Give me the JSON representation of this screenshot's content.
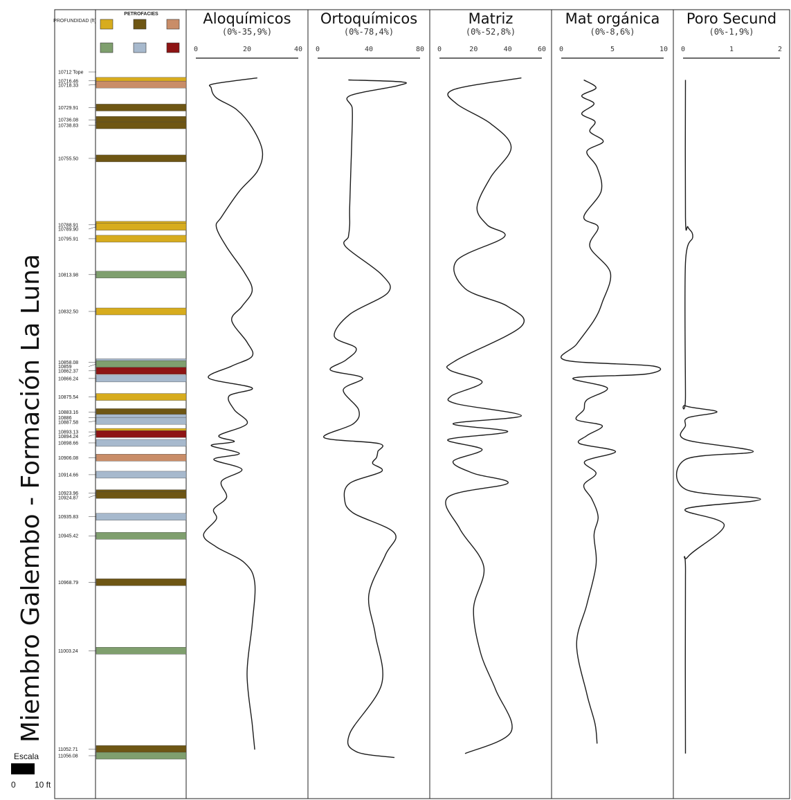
{
  "side_title": "Miembro Galembo - Formación La Luna",
  "depth_header": "PROFUNDIDAD (ft)",
  "lith_header": "PETROFACIES",
  "scale": {
    "label": "Escala",
    "min": "0",
    "max": "10 ft"
  },
  "colors": {
    "ocre": "#d7ac1e",
    "marron": "#6e5614",
    "rosa": "#c98d68",
    "verde": "#7f9f6e",
    "azul": "#a7b9cd",
    "rojo": "#8e1414"
  },
  "legend": [
    {
      "color": "ocre",
      "label": ""
    },
    {
      "color": "marron",
      "label": ""
    },
    {
      "color": "rosa",
      "label": ""
    },
    {
      "color": "verde",
      "label": ""
    },
    {
      "color": "azul",
      "label": ""
    },
    {
      "color": "rojo",
      "label": ""
    }
  ],
  "depths": [
    {
      "label": "10712 Tope",
      "value": 10712,
      "color": ""
    },
    {
      "label": "10716.46",
      "value": 10716.46,
      "color": "ocre"
    },
    {
      "label": "10718.33",
      "value": 10718.33,
      "color": "rosa"
    },
    {
      "label": "10729.91",
      "value": 10729.91,
      "color": "marron"
    },
    {
      "label": "10736.08",
      "value": 10736.08,
      "color": "marron"
    },
    {
      "label": "10738.83",
      "value": 10738.83,
      "color": "marron"
    },
    {
      "label": "10755.50",
      "value": 10755.5,
      "color": "marron"
    },
    {
      "label": "10788.91",
      "value": 10788.91,
      "color": "ocre"
    },
    {
      "label": "10789.90",
      "value": 10789.9,
      "color": "ocre"
    },
    {
      "label": "10795.91",
      "value": 10795.91,
      "color": "ocre"
    },
    {
      "label": "10813.98",
      "value": 10813.98,
      "color": "verde"
    },
    {
      "label": "10832.50",
      "value": 10832.5,
      "color": "ocre"
    },
    {
      "label": "10858.08",
      "value": 10858.08,
      "color": "azul"
    },
    {
      "label": "10859",
      "value": 10859,
      "color": "verde"
    },
    {
      "label": "10862.37",
      "value": 10862.37,
      "color": "rojo"
    },
    {
      "label": "10866.24",
      "value": 10866.24,
      "color": "azul"
    },
    {
      "label": "10875.54",
      "value": 10875.54,
      "color": "ocre"
    },
    {
      "label": "10883.16",
      "value": 10883.16,
      "color": "marron"
    },
    {
      "label": "10886",
      "value": 10886,
      "color": "azul"
    },
    {
      "label": "10887.58",
      "value": 10887.58,
      "color": "azul"
    },
    {
      "label": "10893.13",
      "value": 10893.13,
      "color": "ocre"
    },
    {
      "label": "10894.24",
      "value": 10894.24,
      "color": "rojo"
    },
    {
      "label": "10898.66",
      "value": 10898.66,
      "color": "azul"
    },
    {
      "label": "10906.08",
      "value": 10906.08,
      "color": "rosa"
    },
    {
      "label": "10914.66",
      "value": 10914.66,
      "color": "azul"
    },
    {
      "label": "10923.96",
      "value": 10923.96,
      "color": "marron"
    },
    {
      "label": "10924.87",
      "value": 10924.87,
      "color": "marron"
    },
    {
      "label": "10935.83",
      "value": 10935.83,
      "color": "azul"
    },
    {
      "label": "10945.42",
      "value": 10945.42,
      "color": "verde"
    },
    {
      "label": "10968.79",
      "value": 10968.79,
      "color": "marron"
    },
    {
      "label": "11003.24",
      "value": 11003.24,
      "color": "verde"
    },
    {
      "label": "11052.71",
      "value": 11052.71,
      "color": "marron"
    },
    {
      "label": "11056.08",
      "value": 11056.08,
      "color": "verde"
    }
  ],
  "chart_data": [
    {
      "type": "line",
      "title": "Aloquímicos",
      "subtitle": "(0%-35,9%)",
      "xlim": [
        0,
        40
      ],
      "ticks": [
        "0",
        "20",
        "40"
      ],
      "points": [
        [
          24,
          10715
        ],
        [
          7,
          10718
        ],
        [
          6,
          10720
        ],
        [
          8,
          10725
        ],
        [
          16,
          10731
        ],
        [
          22,
          10740
        ],
        [
          26,
          10752
        ],
        [
          24,
          10762
        ],
        [
          17,
          10772
        ],
        [
          10,
          10785
        ],
        [
          8,
          10790
        ],
        [
          12,
          10800
        ],
        [
          19,
          10813
        ],
        [
          22,
          10822
        ],
        [
          18,
          10830
        ],
        [
          14,
          10837
        ],
        [
          20,
          10848
        ],
        [
          22,
          10855
        ],
        [
          14,
          10860
        ],
        [
          5,
          10866
        ],
        [
          22,
          10871
        ],
        [
          13,
          10875
        ],
        [
          15,
          10882
        ],
        [
          20,
          10889
        ],
        [
          9,
          10895
        ],
        [
          15,
          10898
        ],
        [
          6,
          10900
        ],
        [
          17,
          10904
        ],
        [
          7,
          10907
        ],
        [
          18,
          10912
        ],
        [
          10,
          10918
        ],
        [
          12,
          10926
        ],
        [
          7,
          10932
        ],
        [
          8,
          10937
        ],
        [
          3,
          10945
        ],
        [
          8,
          10951
        ],
        [
          19,
          10959
        ],
        [
          23,
          10969
        ],
        [
          22,
          10990
        ],
        [
          20,
          11015
        ],
        [
          22,
          11040
        ],
        [
          23,
          11053
        ]
      ]
    },
    {
      "type": "line",
      "title": "Ortoquímicos",
      "subtitle": "(0%-78,4%)",
      "xlim": [
        0,
        80
      ],
      "ticks": [
        "0",
        "40",
        "80"
      ],
      "points": [
        [
          24,
          10716
        ],
        [
          66,
          10717
        ],
        [
          62,
          10719
        ],
        [
          25,
          10724
        ],
        [
          27,
          10730
        ],
        [
          27,
          10740
        ],
        [
          26,
          10760
        ],
        [
          25,
          10780
        ],
        [
          25,
          10789
        ],
        [
          24,
          10795
        ],
        [
          22,
          10800
        ],
        [
          50,
          10814
        ],
        [
          55,
          10823
        ],
        [
          25,
          10834
        ],
        [
          13,
          10845
        ],
        [
          30,
          10851
        ],
        [
          22,
          10857
        ],
        [
          10,
          10862
        ],
        [
          35,
          10866
        ],
        [
          20,
          10872
        ],
        [
          32,
          10882
        ],
        [
          28,
          10889
        ],
        [
          5,
          10896
        ],
        [
          48,
          10899
        ],
        [
          47,
          10903
        ],
        [
          46,
          10906
        ],
        [
          43,
          10909
        ],
        [
          50,
          10913
        ],
        [
          25,
          10919
        ],
        [
          21,
          10927
        ],
        [
          28,
          10934
        ],
        [
          60,
          10944
        ],
        [
          53,
          10955
        ],
        [
          40,
          10975
        ],
        [
          45,
          10995
        ],
        [
          50,
          11020
        ],
        [
          25,
          11045
        ],
        [
          30,
          11054
        ],
        [
          60,
          11057
        ]
      ]
    },
    {
      "type": "line",
      "title": "Matriz",
      "subtitle": "(0%-52,8%)",
      "xlim": [
        0,
        60
      ],
      "ticks": [
        "0",
        "20",
        "40",
        "60"
      ],
      "points": [
        [
          48,
          10715
        ],
        [
          8,
          10721
        ],
        [
          10,
          10728
        ],
        [
          30,
          10738
        ],
        [
          42,
          10750
        ],
        [
          30,
          10765
        ],
        [
          22,
          10780
        ],
        [
          28,
          10789
        ],
        [
          38,
          10795
        ],
        [
          10,
          10807
        ],
        [
          15,
          10821
        ],
        [
          40,
          10830
        ],
        [
          48,
          10840
        ],
        [
          10,
          10857
        ],
        [
          6,
          10862
        ],
        [
          25,
          10868
        ],
        [
          7,
          10875
        ],
        [
          10,
          10879
        ],
        [
          48,
          10885
        ],
        [
          8,
          10889
        ],
        [
          40,
          10893
        ],
        [
          5,
          10897
        ],
        [
          25,
          10902
        ],
        [
          8,
          10908
        ],
        [
          20,
          10914
        ],
        [
          40,
          10919
        ],
        [
          5,
          10926
        ],
        [
          12,
          10942
        ],
        [
          26,
          10961
        ],
        [
          20,
          10982
        ],
        [
          24,
          11004
        ],
        [
          33,
          11023
        ],
        [
          42,
          11044
        ],
        [
          15,
          11055
        ]
      ]
    },
    {
      "type": "line",
      "title": "Mat orgánica",
      "subtitle": "(0%-8,6%)",
      "xlim": [
        0,
        10
      ],
      "ticks": [
        "0",
        "5",
        "10"
      ],
      "points": [
        [
          2.2,
          10716
        ],
        [
          3.4,
          10720
        ],
        [
          2,
          10724
        ],
        [
          3.2,
          10728
        ],
        [
          2,
          10733
        ],
        [
          3.3,
          10737
        ],
        [
          2.8,
          10742
        ],
        [
          4.1,
          10747
        ],
        [
          2.5,
          10752
        ],
        [
          3.5,
          10760
        ],
        [
          3.9,
          10772
        ],
        [
          2.2,
          10785
        ],
        [
          3.6,
          10790
        ],
        [
          2.8,
          10800
        ],
        [
          4.8,
          10813
        ],
        [
          4,
          10828
        ],
        [
          3.2,
          10837
        ],
        [
          1.5,
          10849
        ],
        [
          0.4,
          10857
        ],
        [
          9,
          10860
        ],
        [
          8.3,
          10864
        ],
        [
          1.2,
          10866
        ],
        [
          4.5,
          10871
        ],
        [
          2.5,
          10877
        ],
        [
          2.2,
          10882
        ],
        [
          1.5,
          10887
        ],
        [
          4,
          10890
        ],
        [
          2.5,
          10895
        ],
        [
          1.8,
          10899
        ],
        [
          5.3,
          10903
        ],
        [
          2.3,
          10908
        ],
        [
          3.4,
          10914
        ],
        [
          2.2,
          10920
        ],
        [
          3,
          10927
        ],
        [
          3.6,
          10936
        ],
        [
          3.2,
          10945
        ],
        [
          3.4,
          10960
        ],
        [
          2.5,
          10980
        ],
        [
          1.5,
          11000
        ],
        [
          2.5,
          11025
        ],
        [
          3.3,
          11040
        ],
        [
          3.5,
          11050
        ]
      ]
    },
    {
      "type": "line",
      "title": "Poro Secund",
      "subtitle": "(0%-1,9%)",
      "xlim": [
        0,
        2
      ],
      "ticks": [
        "0",
        "1",
        "2"
      ],
      "points": [
        [
          0.05,
          10716
        ],
        [
          0.05,
          10785
        ],
        [
          0.1,
          10790
        ],
        [
          0.2,
          10795
        ],
        [
          0.05,
          10808
        ],
        [
          0.05,
          10875
        ],
        [
          0.05,
          10880
        ],
        [
          0.7,
          10883
        ],
        [
          0.1,
          10886
        ],
        [
          0.05,
          10890
        ],
        [
          0.05,
          10897
        ],
        [
          1.45,
          10903
        ],
        [
          0.05,
          10907
        ],
        [
          0.05,
          10922
        ],
        [
          1.6,
          10927
        ],
        [
          0.05,
          10932
        ],
        [
          0.85,
          10940
        ],
        [
          0.1,
          10956
        ],
        [
          0.05,
          10965
        ],
        [
          0.05,
          11055
        ]
      ]
    }
  ]
}
